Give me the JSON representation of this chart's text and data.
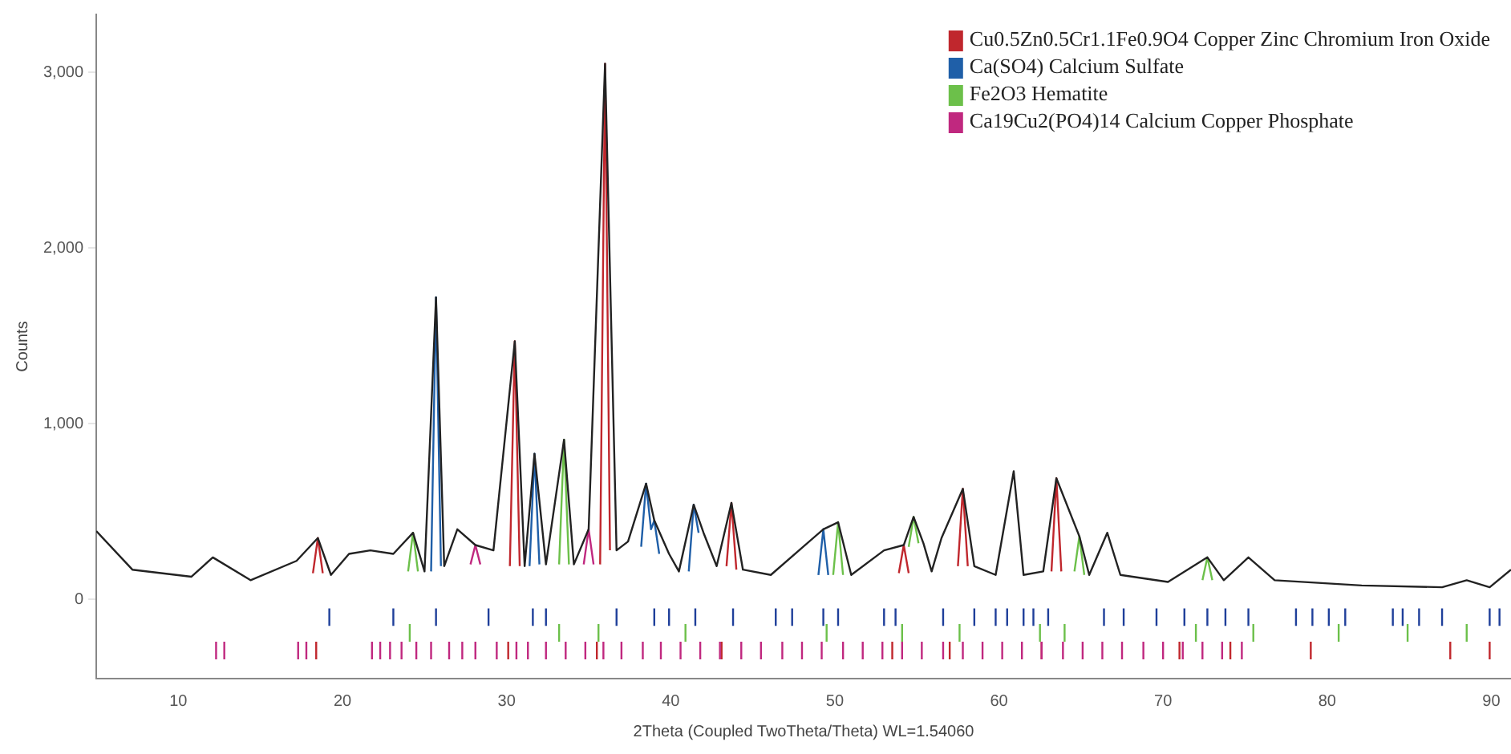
{
  "chart_data": {
    "type": "line",
    "xlabel": "2Theta (Coupled TwoTheta/Theta) WL=1.54060",
    "ylabel": "Counts",
    "xlim": [
      5,
      91.2
    ],
    "ylim": [
      -450,
      3330
    ],
    "xticks": [
      10,
      20,
      30,
      40,
      50,
      60,
      70,
      80,
      90
    ],
    "yticks": [
      0,
      {
        "value": 1000,
        "label": "1,000"
      },
      {
        "value": 2000,
        "label": "2,000"
      },
      {
        "value": 3000,
        "label": "3,000"
      }
    ],
    "grid": false,
    "legend": "top right",
    "marker": "none",
    "line_style": "solid",
    "series": [
      {
        "color": "#222222",
        "x": [
          5,
          7.2,
          10.8,
          12.1,
          14.4,
          17.2,
          18.5,
          19.3,
          20.4,
          21.7,
          23.1,
          24.3,
          25,
          25.7,
          26.2,
          27,
          28.1,
          29.2,
          30.5,
          31.1,
          31.7,
          32.4,
          33.5,
          34.1,
          35,
          36,
          36.7,
          37.4,
          38.5,
          39,
          39.9,
          40.5,
          41.4,
          42,
          42.8,
          43.7,
          44.4,
          46.1,
          49.3,
          50.2,
          51,
          53,
          54.2,
          54.8,
          55.4,
          55.9,
          56.5,
          57.8,
          58.5,
          59.8,
          60.9,
          61.5,
          62.7,
          63.5,
          64.9,
          65.5,
          66.6,
          67.4,
          70.3,
          72.7,
          73.7,
          75.2,
          76.8,
          82.1,
          87,
          88.5,
          89.9,
          91.2
        ],
        "values": [
          390,
          170,
          130,
          240,
          110,
          220,
          350,
          140,
          260,
          280,
          260,
          380,
          160,
          1720,
          190,
          400,
          310,
          280,
          1470,
          190,
          830,
          200,
          910,
          200,
          400,
          3050,
          280,
          330,
          660,
          450,
          260,
          160,
          540,
          380,
          190,
          550,
          170,
          140,
          400,
          440,
          140,
          280,
          310,
          470,
          320,
          160,
          350,
          630,
          190,
          140,
          730,
          140,
          160,
          690,
          360,
          140,
          380,
          140,
          100,
          240,
          110,
          240,
          110,
          80,
          70,
          110,
          70,
          170
        ]
      },
      {
        "type": "line",
        "name": "Cu0.5Zn0.5Cr1.1Fe0.9O4 Copper Zinc Chromium Iron Oxide",
        "color": "#c0272d",
        "x": [
          18.2,
          18.5,
          18.8,
          null,
          30.2,
          30.5,
          30.8,
          null,
          35.7,
          36,
          36.3,
          null,
          43.4,
          43.7,
          44,
          null,
          53.9,
          54.2,
          54.5,
          null,
          57.5,
          57.8,
          58.1,
          null,
          63.2,
          63.5,
          63.8
        ],
        "values": [
          150,
          350,
          150,
          null,
          190,
          1470,
          190,
          null,
          200,
          3050,
          280,
          null,
          190,
          550,
          170,
          null,
          150,
          310,
          150,
          null,
          190,
          630,
          190,
          null,
          160,
          690,
          160
        ]
      },
      {
        "type": "line",
        "name": "Ca(SO4) Calcium Sulfate",
        "color": "#1f5fa8",
        "x": [
          25.4,
          25.7,
          26,
          null,
          31.4,
          31.7,
          32,
          null,
          38.2,
          38.5,
          38.8,
          39,
          39.3,
          null,
          41.1,
          41.4,
          41.7,
          null,
          49,
          49.3,
          49.6
        ],
        "values": [
          160,
          1720,
          190,
          null,
          190,
          830,
          200,
          null,
          300,
          660,
          400,
          450,
          260,
          null,
          160,
          540,
          380,
          null,
          140,
          400,
          140
        ]
      },
      {
        "type": "line",
        "name": "Fe2O3 Hematite",
        "color": "#6cc04a",
        "x": [
          24,
          24.3,
          24.6,
          null,
          33.2,
          33.5,
          33.8,
          null,
          49.9,
          50.2,
          50.5,
          null,
          54.5,
          54.8,
          55.1,
          null,
          64.6,
          64.9,
          65.2,
          null,
          72.4,
          72.7,
          73
        ],
        "values": [
          160,
          380,
          160,
          null,
          200,
          910,
          200,
          null,
          140,
          440,
          140,
          null,
          300,
          470,
          320,
          null,
          160,
          360,
          140,
          null,
          110,
          240,
          110
        ]
      },
      {
        "type": "line",
        "name": "Ca19Cu2(PO4)14 Calcium Copper Phosphate",
        "color": "#c0287f",
        "x": [
          27.8,
          28.1,
          28.4,
          null,
          34.7,
          35,
          35.3
        ],
        "values": [
          200,
          310,
          200,
          null,
          200,
          400,
          200
        ]
      },
      {
        "type": "line",
        "color": "#1f3f9a",
        "x": [
          19.2,
          19.2,
          null,
          23.1,
          23.1,
          null,
          25.7,
          25.7,
          null,
          28.9,
          28.9,
          null,
          31.6,
          31.6,
          null,
          32.4,
          32.4,
          null,
          36.7,
          36.7,
          null,
          39,
          39,
          null,
          39.9,
          39.9,
          null,
          41.5,
          41.5,
          null,
          43.8,
          43.8,
          null,
          46.4,
          46.4,
          null,
          47.4,
          47.4,
          null,
          49.3,
          49.3,
          null,
          50.2,
          50.2,
          null,
          53,
          53,
          null,
          53.7,
          53.7,
          null,
          56.6,
          56.6,
          null,
          58.5,
          58.5,
          null,
          59.8,
          59.8,
          null,
          60.5,
          60.5,
          null,
          61.5,
          61.5,
          null,
          62.1,
          62.1,
          null,
          63,
          63,
          null,
          66.4,
          66.4,
          null,
          67.6,
          67.6,
          null,
          69.6,
          69.6,
          null,
          71.3,
          71.3,
          null,
          72.7,
          72.7,
          null,
          73.8,
          73.8,
          null,
          75.2,
          75.2,
          null,
          78.1,
          78.1,
          null,
          79.1,
          79.1,
          null,
          80.1,
          80.1,
          null,
          81.1,
          81.1,
          null,
          84,
          84,
          null,
          84.6,
          84.6,
          null,
          85.6,
          85.6,
          null,
          87,
          87,
          null,
          89.9,
          89.9,
          null,
          90.5,
          90.5
        ],
        "values": [
          -150,
          -50,
          null,
          -150,
          -50,
          null,
          -150,
          -50,
          null,
          -150,
          -50,
          null,
          -150,
          -50,
          null,
          -150,
          -50,
          null,
          -150,
          -50,
          null,
          -150,
          -50,
          null,
          -150,
          -50,
          null,
          -150,
          -50,
          null,
          -150,
          -50,
          null,
          -150,
          -50,
          null,
          -150,
          -50,
          null,
          -150,
          -50,
          null,
          -150,
          -50,
          null,
          -150,
          -50,
          null,
          -150,
          -50,
          null,
          -150,
          -50,
          null,
          -150,
          -50,
          null,
          -150,
          -50,
          null,
          -150,
          -50,
          null,
          -150,
          -50,
          null,
          -150,
          -50,
          null,
          -150,
          -50,
          null,
          -150,
          -50,
          null,
          -150,
          -50,
          null,
          -150,
          -50,
          null,
          -150,
          -50,
          null,
          -150,
          -50,
          null,
          -150,
          -50,
          null,
          -150,
          -50,
          null,
          -150,
          -50,
          null,
          -150,
          -50,
          null,
          -150,
          -50,
          null,
          -150,
          -50,
          null,
          -150,
          -50,
          null,
          -150,
          -50,
          null,
          -150,
          -50,
          null,
          -150,
          -50,
          null,
          -150,
          -50,
          null,
          -150,
          -50
        ]
      },
      {
        "type": "line",
        "color": "#6cc04a",
        "x": [
          24.1,
          24.1,
          null,
          33.2,
          33.2,
          null,
          35.6,
          35.6,
          null,
          40.9,
          40.9,
          null,
          49.5,
          49.5,
          null,
          54.1,
          54.1,
          null,
          57.6,
          57.6,
          null,
          62.5,
          62.5,
          null,
          64,
          64,
          null,
          72,
          72,
          null,
          75.5,
          75.5,
          null,
          80.7,
          80.7,
          null,
          84.9,
          84.9,
          null,
          88.5,
          88.5
        ],
        "values": [
          -240,
          -140,
          null,
          -240,
          -140,
          null,
          -240,
          -140,
          null,
          -240,
          -140,
          null,
          -240,
          -140,
          null,
          -240,
          -140,
          null,
          -240,
          -140,
          null,
          -240,
          -140,
          null,
          -240,
          -140,
          null,
          -240,
          -140,
          null,
          -240,
          -140,
          null,
          -240,
          -140,
          null,
          -240,
          -140,
          null,
          -240,
          -140
        ]
      },
      {
        "type": "line",
        "color": "#c0287f",
        "x": [
          12.3,
          12.3,
          null,
          12.8,
          12.8,
          null,
          17.3,
          17.3,
          null,
          17.8,
          17.8,
          null,
          21.8,
          21.8,
          null,
          22.3,
          22.3,
          null,
          22.9,
          22.9,
          null,
          23.6,
          23.6,
          null,
          24.5,
          24.5,
          null,
          25.4,
          25.4,
          null,
          26.5,
          26.5,
          null,
          27.3,
          27.3,
          null,
          28.1,
          28.1,
          null,
          29.4,
          29.4,
          null,
          30.6,
          30.6,
          null,
          31.3,
          31.3,
          null,
          32.4,
          32.4,
          null,
          33.6,
          33.6,
          null,
          34.8,
          34.8,
          null,
          35.9,
          35.9,
          null,
          37,
          37,
          null,
          38.3,
          38.3,
          null,
          39.4,
          39.4,
          null,
          40.6,
          40.6,
          null,
          41.8,
          41.8,
          null,
          43,
          43,
          null,
          44.3,
          44.3,
          null,
          45.5,
          45.5,
          null,
          46.8,
          46.8,
          null,
          48,
          48,
          null,
          49.2,
          49.2,
          null,
          50.5,
          50.5,
          null,
          51.7,
          51.7,
          null,
          52.9,
          52.9,
          null,
          54.1,
          54.1,
          null,
          55.3,
          55.3,
          null,
          56.6,
          56.6,
          null,
          57.8,
          57.8,
          null,
          59,
          59,
          null,
          60.2,
          60.2,
          null,
          61.4,
          61.4,
          null,
          62.6,
          62.6,
          null,
          63.9,
          63.9,
          null,
          65.1,
          65.1,
          null,
          66.3,
          66.3,
          null,
          67.5,
          67.5,
          null,
          68.8,
          68.8,
          null,
          70,
          70,
          null,
          71.2,
          71.2,
          null,
          72.4,
          72.4,
          null,
          73.6,
          73.6,
          null,
          74.8,
          74.8
        ],
        "values": [
          -340,
          -240,
          null,
          -340,
          -240,
          null,
          -340,
          -240,
          null,
          -340,
          -240,
          null,
          -340,
          -240,
          null,
          -340,
          -240,
          null,
          -340,
          -240,
          null,
          -340,
          -240,
          null,
          -340,
          -240,
          null,
          -340,
          -240,
          null,
          -340,
          -240,
          null,
          -340,
          -240,
          null,
          -340,
          -240,
          null,
          -340,
          -240,
          null,
          -340,
          -240,
          null,
          -340,
          -240,
          null,
          -340,
          -240,
          null,
          -340,
          -240,
          null,
          -340,
          -240,
          null,
          -340,
          -240,
          null,
          -340,
          -240,
          null,
          -340,
          -240,
          null,
          -340,
          -240,
          null,
          -340,
          -240,
          null,
          -340,
          -240,
          null,
          -340,
          -240,
          null,
          -340,
          -240,
          null,
          -340,
          -240,
          null,
          -340,
          -240,
          null,
          -340,
          -240,
          null,
          -340,
          -240,
          null,
          -340,
          -240,
          null,
          -340,
          -240,
          null,
          -340,
          -240,
          null,
          -340,
          -240,
          null,
          -340,
          -240,
          null,
          -340,
          -240,
          null,
          -340,
          -240,
          null,
          -340,
          -240,
          null,
          -340,
          -240,
          null,
          -340,
          -240,
          null,
          -340,
          -240,
          null,
          -340,
          -240,
          null,
          -340,
          -240,
          null,
          -340,
          -240,
          null,
          -340,
          -240,
          null,
          -340,
          -240,
          null,
          -340,
          -240,
          null,
          -340,
          -240,
          null,
          -340,
          -240,
          null,
          -340,
          -240,
          null,
          -340,
          -240
        ]
      },
      {
        "type": "line",
        "color": "#c0272d",
        "x": [
          18.4,
          18.4,
          null,
          30.1,
          30.1,
          null,
          35.5,
          35.5,
          null,
          43.1,
          43.1,
          null,
          53.5,
          53.5,
          null,
          57,
          57,
          null,
          62.6,
          62.6,
          null,
          71,
          71,
          null,
          74.1,
          74.1,
          null,
          79,
          79,
          null,
          87.5,
          87.5,
          null,
          89.9,
          89.9
        ],
        "values": [
          -340,
          -240,
          null,
          -340,
          -240,
          null,
          -340,
          -240,
          null,
          -340,
          -240,
          null,
          -340,
          -240,
          null,
          -340,
          -240,
          null,
          -340,
          -240,
          null,
          -340,
          -240,
          null,
          -340,
          -240,
          null,
          -340,
          -240,
          null,
          -340,
          -240,
          null,
          -340,
          -240
        ]
      }
    ]
  }
}
